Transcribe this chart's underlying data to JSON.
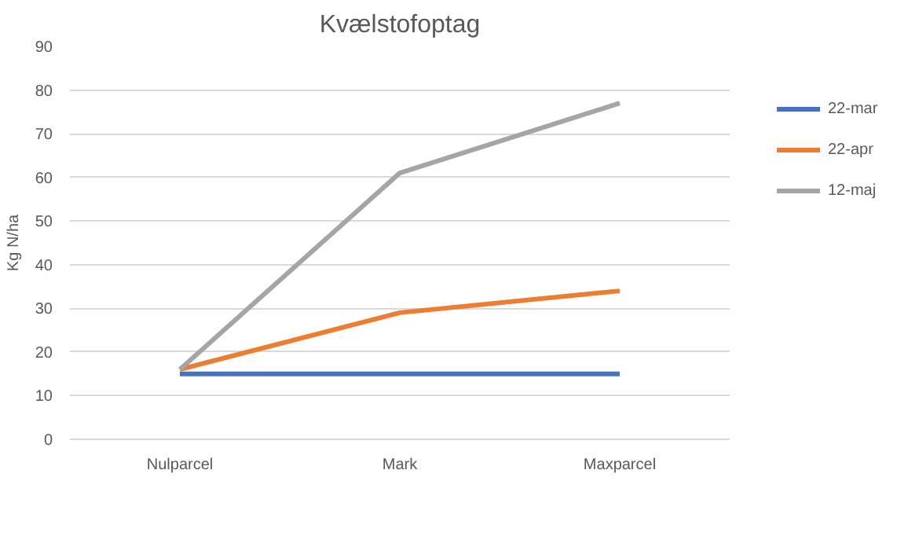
{
  "chart_data": {
    "type": "line",
    "title": "Kvælstofoptag",
    "ylabel": "Kg N/ha",
    "categories": [
      "Nulparcel",
      "Mark",
      "Maxparcel"
    ],
    "series": [
      {
        "name": "22-mar",
        "color": "#4472c4",
        "values": [
          15,
          15,
          15
        ]
      },
      {
        "name": "22-apr",
        "color": "#ed7d31",
        "values": [
          16,
          29,
          34
        ]
      },
      {
        "name": "12-maj",
        "color": "#a5a5a5",
        "values": [
          16,
          61,
          77
        ]
      }
    ],
    "ylim": [
      0,
      90
    ],
    "yticks": [
      0,
      10,
      20,
      30,
      40,
      50,
      60,
      70,
      80,
      90
    ],
    "grid": "y",
    "legend": "right"
  }
}
